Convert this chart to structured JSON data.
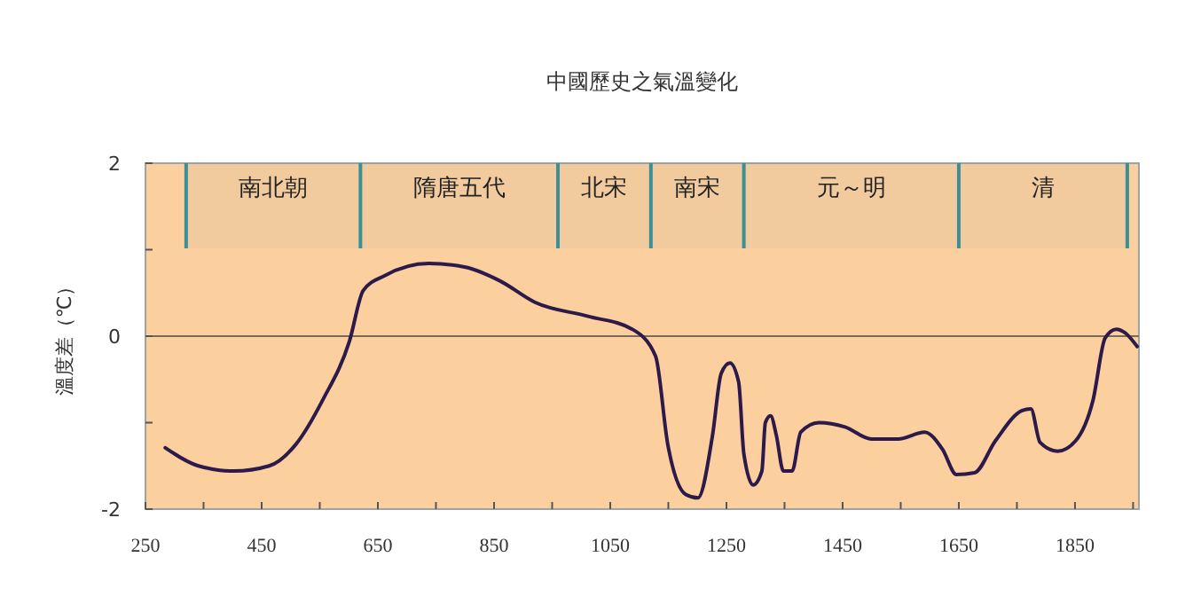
{
  "chart_data": {
    "type": "line",
    "title": "中國歷史之氣溫變化",
    "ylabel": "溫度差（℃）",
    "xlim": [
      250,
      1960
    ],
    "ylim": [
      -2,
      2
    ],
    "xticks": [
      250,
      {
        "value": 350,
        "label": null
      },
      450,
      {
        "value": 550,
        "label": null
      },
      650,
      {
        "value": 750,
        "label": null
      },
      850,
      {
        "value": 950,
        "label": null
      },
      1050,
      {
        "value": 1150,
        "label": null
      },
      1250,
      {
        "value": 1350,
        "label": null
      },
      1450,
      {
        "value": 1550,
        "label": null
      },
      1650,
      {
        "value": 1750,
        "label": null
      },
      1850,
      {
        "value": 1950,
        "label": null
      }
    ],
    "yticks": [
      -2,
      {
        "value": -1,
        "label": null
      },
      0,
      {
        "value": 1,
        "label": null
      },
      2
    ],
    "grid": false,
    "marker": "none",
    "line_style": "solid",
    "ref_lines": [
      {
        "axis": "y",
        "value": 0,
        "label": null,
        "color": "#7a6a5a"
      },
      {
        "axis": "x",
        "value": 320,
        "label": null,
        "color": "#3c8f96"
      },
      {
        "axis": "x",
        "value": 620,
        "label": null,
        "color": "#3c8f96"
      },
      {
        "axis": "x",
        "value": 960,
        "label": null,
        "color": "#3c8f96"
      },
      {
        "axis": "x",
        "value": 1120,
        "label": null,
        "color": "#3c8f96"
      },
      {
        "axis": "x",
        "value": 1280,
        "label": null,
        "color": "#3c8f96"
      },
      {
        "axis": "x",
        "value": 1650,
        "label": null,
        "color": "#3c8f96"
      },
      {
        "axis": "x",
        "value": 1940,
        "label": null,
        "color": "#3c8f96"
      }
    ],
    "bands": [
      {
        "axis": "x",
        "from": 320,
        "to": 620,
        "label": "南北朝",
        "color": "#3c8f96"
      },
      {
        "axis": "x",
        "from": 620,
        "to": 960,
        "label": "隋唐五代",
        "color": "#3c8f96"
      },
      {
        "axis": "x",
        "from": 960,
        "to": 1120,
        "label": "北宋",
        "color": "#3c8f96"
      },
      {
        "axis": "x",
        "from": 1120,
        "to": 1280,
        "label": "南宋",
        "color": "#3c8f96"
      },
      {
        "axis": "x",
        "from": 1280,
        "to": 1650,
        "label": "元～明",
        "color": "#3c8f96"
      },
      {
        "axis": "x",
        "from": 1650,
        "to": 1940,
        "label": "清",
        "color": "#3c8f96"
      }
    ],
    "series": [
      {
        "color": "#2b1a4a",
        "x": [
          284,
          341,
          402,
          463,
          509,
          555,
          601,
          625,
          662,
          738,
          799,
          860,
          921,
          1012,
          1088,
          1128,
          1149,
          1180,
          1201,
          1226,
          1241,
          1256,
          1271,
          1280,
          1296,
          1311,
          1317,
          1326,
          1336,
          1348,
          1363,
          1378,
          1409,
          1454,
          1500,
          1546,
          1591,
          1622,
          1646,
          1677,
          1713,
          1759,
          1774,
          1790,
          1820,
          1851,
          1881,
          1902,
          1921,
          1936,
          1957
        ],
        "values": [
          -1.29,
          -1.5,
          -1.56,
          -1.5,
          -1.25,
          -0.74,
          -0.06,
          0.53,
          0.7,
          0.84,
          0.8,
          0.64,
          0.39,
          0.23,
          0.08,
          -0.23,
          -1.25,
          -1.83,
          -1.87,
          -1.15,
          -0.43,
          -0.31,
          -0.53,
          -1.36,
          -1.72,
          -1.56,
          -1.0,
          -0.92,
          -1.15,
          -1.56,
          -1.56,
          -1.11,
          -1.0,
          -1.05,
          -1.19,
          -1.19,
          -1.11,
          -1.31,
          -1.6,
          -1.58,
          -1.21,
          -0.86,
          -0.84,
          -1.23,
          -1.33,
          -1.21,
          -0.74,
          -0.02,
          0.08,
          0.04,
          -0.12
        ]
      }
    ]
  }
}
